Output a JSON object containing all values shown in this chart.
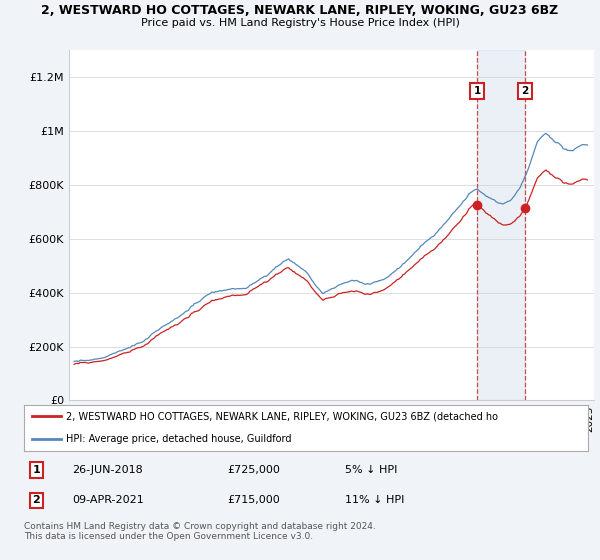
{
  "title1": "2, WESTWARD HO COTTAGES, NEWARK LANE, RIPLEY, WOKING, GU23 6BZ",
  "title2": "Price paid vs. HM Land Registry's House Price Index (HPI)",
  "ylim": [
    0,
    1300000
  ],
  "yticks": [
    0,
    200000,
    400000,
    600000,
    800000,
    1000000,
    1200000
  ],
  "ytick_labels": [
    "£0",
    "£200K",
    "£400K",
    "£600K",
    "£800K",
    "£1M",
    "£1.2M"
  ],
  "hpi_color": "#5588bb",
  "price_color": "#cc2222",
  "t1_year": 2018.49,
  "t1_price": 725000,
  "t2_year": 2021.27,
  "t2_price": 715000,
  "legend_price_label": "2, WESTWARD HO COTTAGES, NEWARK LANE, RIPLEY, WOKING, GU23 6BZ (detached ho",
  "legend_hpi_label": "HPI: Average price, detached house, Guildford",
  "footnote": "Contains HM Land Registry data © Crown copyright and database right 2024.\nThis data is licensed under the Open Government Licence v3.0.",
  "table_row1": [
    "1",
    "26-JUN-2018",
    "£725,000",
    "5% ↓ HPI"
  ],
  "table_row2": [
    "2",
    "09-APR-2021",
    "£715,000",
    "11% ↓ HPI"
  ],
  "bg_color": "#f0f4f8",
  "plot_bg": "#ffffff"
}
